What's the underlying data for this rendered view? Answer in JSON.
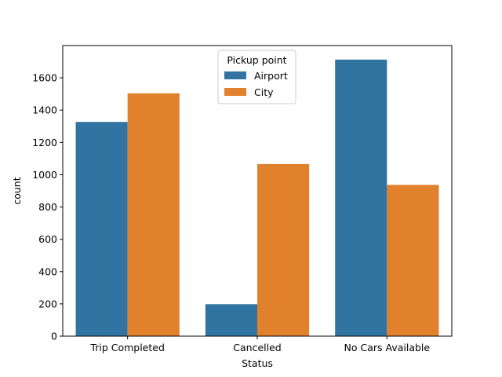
{
  "chart_data": {
    "type": "bar",
    "xlabel": "Status",
    "ylabel": "count",
    "categories": [
      "Trip Completed",
      "Cancelled",
      "No Cars Available"
    ],
    "series": [
      {
        "name": "Airport",
        "color": "#3274a1",
        "values": [
          1327,
          198,
          1713
        ]
      },
      {
        "name": "City",
        "color": "#e1812c",
        "values": [
          1504,
          1066,
          937
        ]
      }
    ],
    "ylim": [
      0,
      1800
    ],
    "yticks": [
      0,
      200,
      400,
      600,
      800,
      1000,
      1200,
      1400,
      1600
    ],
    "legend": {
      "title": "Pickup point",
      "placement": "top-center"
    },
    "grid": false
  }
}
